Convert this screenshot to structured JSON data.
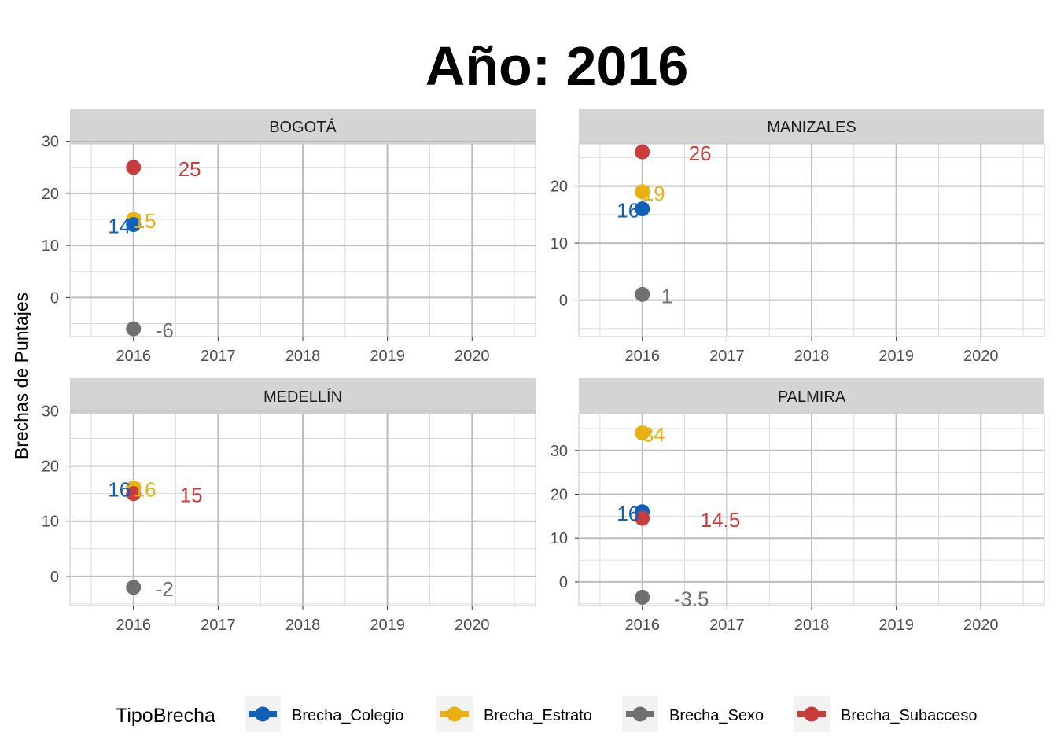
{
  "chart_data": {
    "type": "scatter",
    "title": "Año: 2016",
    "ylabel": "Brechas de Puntajes",
    "xlabel": "",
    "x_ticks": [
      2016,
      2017,
      2018,
      2019,
      2020
    ],
    "xlim": [
      2015.25,
      2020.75
    ],
    "grid": true,
    "legend": {
      "title": "TipoBrecha",
      "position": "bottom",
      "entries": [
        {
          "name": "Brecha_Colegio",
          "color": "#1060B8"
        },
        {
          "name": "Brecha_Estrato",
          "color": "#E8B010"
        },
        {
          "name": "Brecha_Sexo",
          "color": "#707070"
        },
        {
          "name": "Brecha_Subacceso",
          "color": "#C83C3C"
        }
      ]
    },
    "panels": [
      {
        "name": "BOGOTÁ",
        "ylim": [
          -7.5,
          29.5
        ],
        "y_ticks": [
          0,
          10,
          20,
          30
        ],
        "points": [
          {
            "series": "Brecha_Subacceso",
            "x": 2016,
            "y": 25,
            "label": "25"
          },
          {
            "series": "Brecha_Estrato",
            "x": 2016,
            "y": 15,
            "label": "15"
          },
          {
            "series": "Brecha_Colegio",
            "x": 2016,
            "y": 14,
            "label": "14"
          },
          {
            "series": "Brecha_Sexo",
            "x": 2016,
            "y": -6,
            "label": "-6"
          }
        ]
      },
      {
        "name": "MANIZALES",
        "ylim": [
          -6.4,
          27.4
        ],
        "y_ticks": [
          0,
          10,
          20
        ],
        "points": [
          {
            "series": "Brecha_Subacceso",
            "x": 2016,
            "y": 26,
            "label": "26"
          },
          {
            "series": "Brecha_Estrato",
            "x": 2016,
            "y": 19,
            "label": "19"
          },
          {
            "series": "Brecha_Colegio",
            "x": 2016,
            "y": 16,
            "label": "16"
          },
          {
            "series": "Brecha_Sexo",
            "x": 2016,
            "y": 1,
            "label": "1"
          }
        ]
      },
      {
        "name": "MEDELLÍN",
        "ylim": [
          -5.3,
          29.5
        ],
        "y_ticks": [
          0,
          10,
          20,
          30
        ],
        "points": [
          {
            "series": "Brecha_Colegio",
            "x": 2016,
            "y": 16,
            "label": "16"
          },
          {
            "series": "Brecha_Estrato",
            "x": 2016,
            "y": 16,
            "label": "16"
          },
          {
            "series": "Brecha_Subacceso",
            "x": 2016,
            "y": 15,
            "label": "15"
          },
          {
            "series": "Brecha_Sexo",
            "x": 2016,
            "y": -2,
            "label": "-2"
          }
        ]
      },
      {
        "name": "PALMIRA",
        "ylim": [
          -5.4,
          38.4
        ],
        "y_ticks": [
          0,
          10,
          20,
          30
        ],
        "points": [
          {
            "series": "Brecha_Estrato",
            "x": 2016,
            "y": 34,
            "label": "34"
          },
          {
            "series": "Brecha_Colegio",
            "x": 2016,
            "y": 16,
            "label": "16"
          },
          {
            "series": "Brecha_Subacceso",
            "x": 2016,
            "y": 14.5,
            "label": "14.5"
          },
          {
            "series": "Brecha_Sexo",
            "x": 2016,
            "y": -3.5,
            "label": "-3.5"
          }
        ]
      }
    ]
  }
}
